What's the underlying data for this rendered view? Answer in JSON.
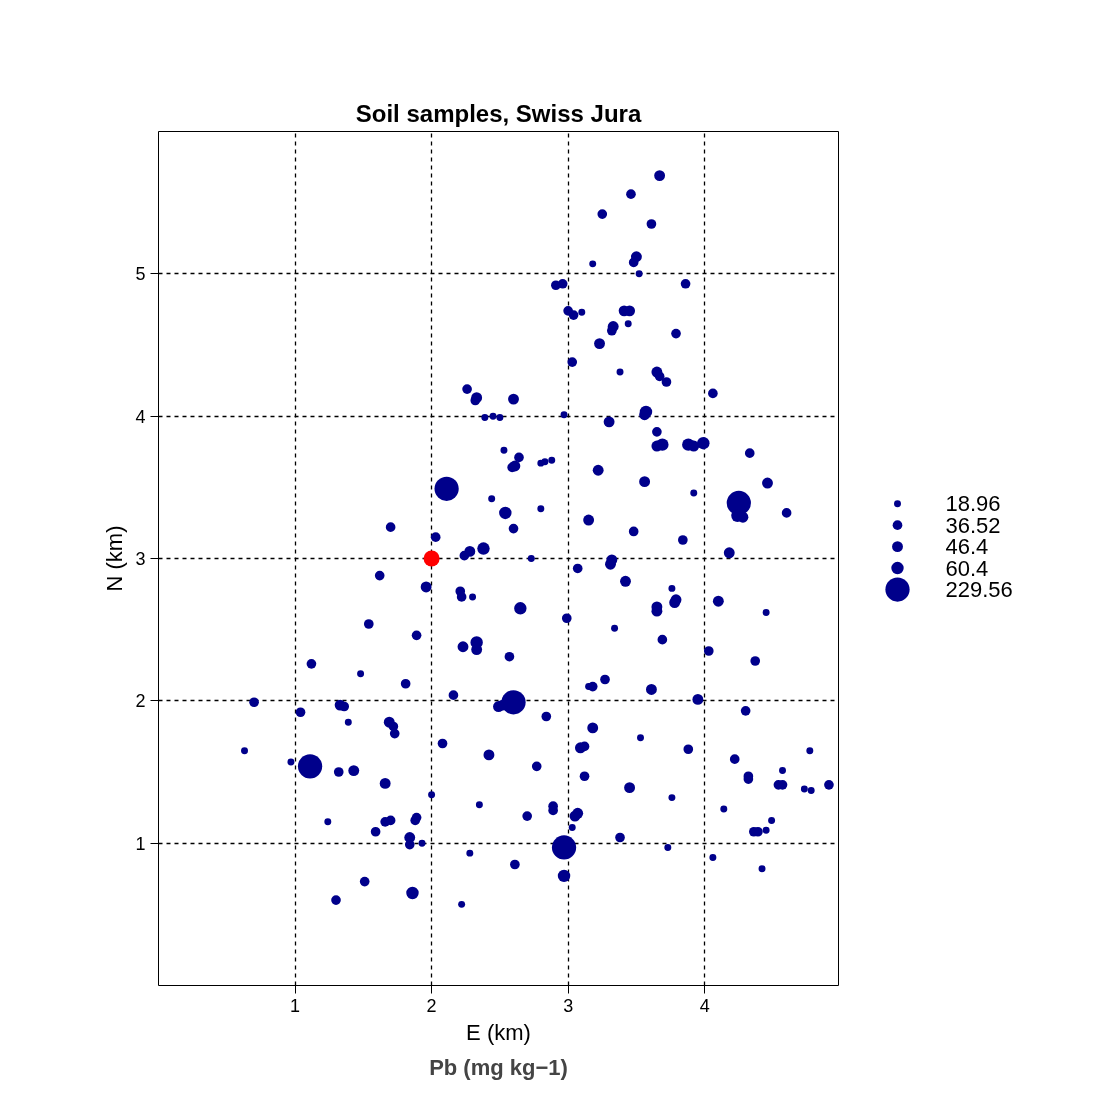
{
  "chart_data": {
    "type": "bubble",
    "title": "Soil samples, Swiss Jura",
    "xlabel": "E (km)",
    "ylabel": "N (km)",
    "legend_title": "Pb (mg kg−1)",
    "xlim": [
      0,
      4.98
    ],
    "ylim": [
      0,
      6
    ],
    "xticks": [
      1,
      2,
      3,
      4
    ],
    "yticks": [
      1,
      2,
      3,
      4,
      5
    ],
    "grid": true,
    "marker": "circle",
    "size_legend": [
      18.96,
      36.52,
      46.4,
      60.4,
      229.56
    ],
    "series": [
      {
        "color": "#00008b",
        "x": [
          3.67,
          3.46,
          3.25,
          3.61,
          3.18,
          3.5,
          3.48,
          3.52,
          3.86,
          2.91,
          2.96,
          3.0,
          3.04,
          3.1,
          3.41,
          3.45,
          3.33,
          3.32,
          3.44,
          3.79,
          3.23,
          3.03,
          3.38,
          3.65,
          3.67,
          3.72,
          4.06,
          2.26,
          2.33,
          2.32,
          2.6,
          2.39,
          2.45,
          2.5,
          2.97,
          3.3,
          3.57,
          3.56,
          3.65,
          3.65,
          3.69,
          3.88,
          3.92,
          3.99,
          4.33,
          2.53,
          2.64,
          2.61,
          2.8,
          2.83,
          2.88,
          3.22,
          2.59,
          2.11,
          3.56,
          4.46,
          3.92,
          4.25,
          4.24,
          4.28,
          4.6,
          2.44,
          2.8,
          2.54,
          3.15,
          2.6,
          1.7,
          2.03,
          3.48,
          3.84,
          2.38,
          2.28,
          2.24,
          2.73,
          3.32,
          3.31,
          3.07,
          4.18,
          1.62,
          3.42,
          1.96,
          2.21,
          2.22,
          2.3,
          2.65,
          3.76,
          3.65,
          3.65,
          3.78,
          3.79,
          4.1,
          4.45,
          2.99,
          1.54,
          3.34,
          1.89,
          2.33,
          2.33,
          2.23,
          3.69,
          4.03,
          2.57,
          1.12,
          4.37,
          1.48,
          3.27,
          3.15,
          3.18,
          3.61,
          1.81,
          2.16,
          0.7,
          1.33,
          1.36,
          2.6,
          2.52,
          2.49,
          3.95,
          1.04,
          4.3,
          2.84,
          1.69,
          1.39,
          1.72,
          1.73,
          3.18,
          2.08,
          3.53,
          3.12,
          3.09,
          0.63,
          3.88,
          4.77,
          1.11,
          0.97,
          1.32,
          1.43,
          2.42,
          2.77,
          4.22,
          4.57,
          1.66,
          3.12,
          3.45,
          4.32,
          4.32,
          4.54,
          4.57,
          4.73,
          4.78,
          4.91,
          2.0,
          3.76,
          2.35,
          2.89,
          2.89,
          4.14,
          3.07,
          3.05,
          2.7,
          1.7,
          1.66,
          1.24,
          1.89,
          1.88,
          3.03,
          4.49,
          4.45,
          4.39,
          4.36,
          1.59,
          1.84,
          1.84,
          1.93,
          3.38,
          2.97,
          3.73,
          2.28,
          2.61,
          4.06,
          4.42,
          2.97,
          1.51,
          1.86,
          1.3,
          2.22
        ],
        "values": [
          5.69,
          5.56,
          5.42,
          5.35,
          5.07,
          5.12,
          5.08,
          5.0,
          4.93,
          4.92,
          4.93,
          4.74,
          4.71,
          4.73,
          4.74,
          4.74,
          4.63,
          4.6,
          4.65,
          4.58,
          4.51,
          4.38,
          4.31,
          4.31,
          4.28,
          4.24,
          4.16,
          4.19,
          4.13,
          4.11,
          4.12,
          3.99,
          4.0,
          3.99,
          4.01,
          3.96,
          4.03,
          4.01,
          3.89,
          3.79,
          3.8,
          3.8,
          3.79,
          3.81,
          3.74,
          3.76,
          3.71,
          3.65,
          3.67,
          3.68,
          3.69,
          3.62,
          3.64,
          3.49,
          3.54,
          3.53,
          3.46,
          3.39,
          3.3,
          3.29,
          3.32,
          3.42,
          3.35,
          3.32,
          3.27,
          3.21,
          3.22,
          3.15,
          3.19,
          3.13,
          3.07,
          3.05,
          3.02,
          3.0,
          2.99,
          2.96,
          2.93,
          3.04,
          2.88,
          2.84,
          2.8,
          2.77,
          2.73,
          2.73,
          2.65,
          2.79,
          2.66,
          2.63,
          2.69,
          2.71,
          2.7,
          2.62,
          2.58,
          2.54,
          2.51,
          2.46,
          2.41,
          2.36,
          2.38,
          2.43,
          2.35,
          2.31,
          2.26,
          2.28,
          2.19,
          2.15,
          2.1,
          2.1,
          2.08,
          2.12,
          2.04,
          1.99,
          1.97,
          1.96,
          1.99,
          1.97,
          1.96,
          2.01,
          1.92,
          1.93,
          1.89,
          1.85,
          1.85,
          1.82,
          1.77,
          1.81,
          1.7,
          1.74,
          1.68,
          1.67,
          1.65,
          1.66,
          1.65,
          1.54,
          1.57,
          1.5,
          1.51,
          1.62,
          1.54,
          1.59,
          1.51,
          1.42,
          1.47,
          1.39,
          1.47,
          1.45,
          1.41,
          1.41,
          1.38,
          1.37,
          1.41,
          1.34,
          1.32,
          1.27,
          1.26,
          1.23,
          1.24,
          1.21,
          1.19,
          1.19,
          1.16,
          1.15,
          1.15,
          1.18,
          1.16,
          1.11,
          1.16,
          1.09,
          1.08,
          1.08,
          1.08,
          1.04,
          0.99,
          1.0,
          1.04,
          0.97,
          0.97,
          0.93,
          0.85,
          0.9,
          0.82,
          0.77,
          0.73,
          0.65,
          0.6,
          0.57
        ],
        "sizes": [
          46.4,
          36.52,
          36.52,
          36.52,
          18.96,
          46.4,
          36.52,
          18.96,
          36.52,
          36.52,
          36.52,
          36.52,
          36.52,
          18.96,
          46.4,
          46.4,
          46.4,
          36.52,
          18.96,
          36.52,
          46.4,
          36.52,
          18.96,
          46.4,
          36.52,
          36.52,
          36.52,
          36.52,
          46.4,
          36.52,
          46.4,
          18.96,
          18.96,
          18.96,
          18.96,
          46.4,
          60.4,
          46.4,
          36.52,
          46.4,
          60.4,
          60.4,
          46.4,
          60.4,
          36.52,
          18.96,
          36.52,
          46.4,
          18.96,
          18.96,
          18.96,
          46.4,
          36.52,
          229.56,
          46.4,
          46.4,
          18.96,
          229.56,
          60.4,
          46.4,
          36.52,
          18.96,
          18.96,
          60.4,
          46.4,
          36.52,
          36.52,
          36.52,
          36.52,
          36.52,
          60.4,
          46.4,
          36.52,
          18.96,
          46.4,
          46.4,
          36.52,
          46.4,
          36.52,
          46.4,
          46.4,
          36.52,
          36.52,
          18.96,
          60.4,
          18.96,
          46.4,
          46.4,
          46.4,
          46.4,
          46.4,
          18.96,
          36.52,
          36.52,
          18.96,
          36.52,
          60.4,
          46.4,
          46.4,
          36.52,
          36.52,
          36.52,
          36.52,
          36.52,
          18.96,
          36.52,
          18.96,
          36.52,
          46.4,
          36.52,
          36.52,
          36.52,
          46.4,
          36.52,
          229.56,
          46.4,
          46.4,
          46.4,
          36.52,
          36.52,
          36.52,
          46.4,
          18.96,
          36.52,
          36.52,
          46.4,
          36.52,
          18.96,
          36.52,
          46.4,
          18.96,
          36.52,
          18.96,
          229.56,
          18.96,
          36.52,
          46.4,
          46.4,
          36.52,
          36.52,
          18.96,
          46.4,
          36.52,
          46.4,
          36.52,
          36.52,
          36.52,
          36.52,
          18.96,
          18.96,
          36.52,
          18.96,
          18.96,
          18.96,
          36.52,
          36.52,
          18.96,
          46.4,
          46.4,
          36.52,
          36.52,
          36.52,
          18.96,
          36.52,
          36.52,
          18.96,
          18.96,
          18.96,
          36.52,
          36.52,
          36.52,
          46.4,
          36.52,
          18.96,
          36.52,
          229.56,
          18.96,
          18.96,
          36.52,
          18.96,
          18.96,
          60.4,
          36.52,
          60.4,
          36.52,
          18.96
        ]
      },
      {
        "color": "#ff0000",
        "x": [
          2
        ],
        "values": [
          3
        ]
      }
    ]
  }
}
